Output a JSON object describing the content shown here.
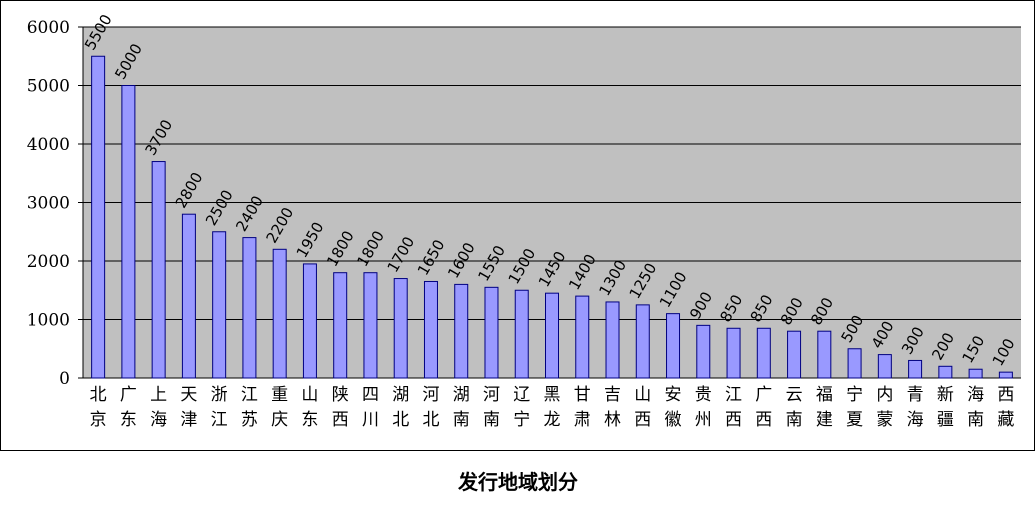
{
  "caption": "发行地域划分",
  "colors": {
    "plot_bg": "#c0c0c0",
    "bar_fill": "#9999ff",
    "bar_stroke": "#000080",
    "grid": "#000000",
    "text": "#000000"
  },
  "chart_data": {
    "type": "bar",
    "title": "",
    "xlabel": "",
    "ylabel": "",
    "ylim": [
      0,
      6000
    ],
    "yticks": [
      0,
      1000,
      2000,
      3000,
      4000,
      5000,
      6000
    ],
    "grid": true,
    "legend": "none",
    "categories": [
      "北京",
      "广东",
      "上海",
      "天津",
      "浙江",
      "江苏",
      "重庆",
      "山东",
      "陕西",
      "四川",
      "湖北",
      "河北",
      "湖南",
      "河南",
      "辽宁",
      "黑龙",
      "甘肃",
      "吉林",
      "山西",
      "安徽",
      "贵州",
      "江西",
      "广西",
      "云南",
      "福建",
      "宁夏",
      "内蒙",
      "青海",
      "新疆",
      "海南",
      "西藏"
    ],
    "values": [
      5500,
      5000,
      3700,
      2800,
      2500,
      2400,
      2200,
      1950,
      1800,
      1800,
      1700,
      1650,
      1600,
      1550,
      1500,
      1450,
      1400,
      1300,
      1250,
      1100,
      900,
      850,
      850,
      800,
      800,
      500,
      400,
      300,
      200,
      150,
      100
    ],
    "data_labels": true
  }
}
